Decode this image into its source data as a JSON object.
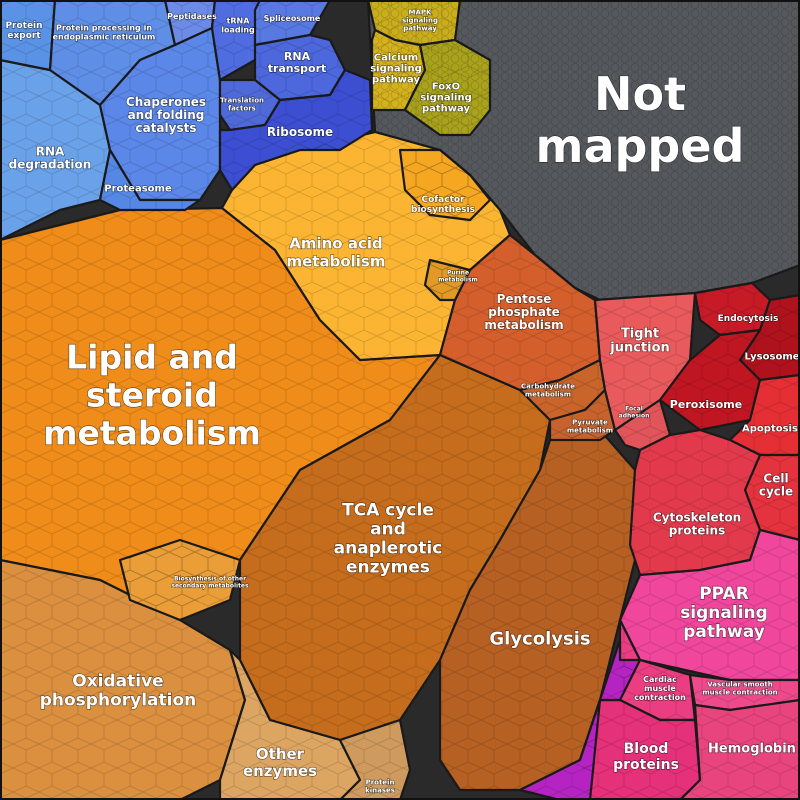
{
  "diagram": {
    "type": "voronoi-treemap",
    "cells": [
      {
        "id": "not-mapped",
        "label": [
          "Not",
          "mapped"
        ],
        "color": "#55585c"
      },
      {
        "id": "lipid-steroid",
        "label": [
          "Lipid and",
          "steroid",
          "metabolism"
        ],
        "color": "#f08c1a"
      },
      {
        "id": "amino-acid",
        "label": [
          "Amino acid",
          "metabolism"
        ],
        "color": "#fbb532"
      },
      {
        "id": "tca-cycle",
        "label": [
          "TCA cycle",
          "and",
          "anaplerotic",
          "enzymes"
        ],
        "color": "#c56d1d"
      },
      {
        "id": "glycolysis",
        "label": [
          "Glycolysis"
        ],
        "color": "#b66023"
      },
      {
        "id": "pentose-phosphate",
        "label": [
          "Pentose",
          "phosphate",
          "metabolism"
        ],
        "color": "#d45f2c"
      },
      {
        "id": "carbohydrate",
        "label": [
          "Carbohydrate",
          "metabolism"
        ],
        "color": "#c9642a"
      },
      {
        "id": "pyruvate",
        "label": [
          "Pyruvate",
          "metabolism"
        ],
        "color": "#c7622c"
      },
      {
        "id": "cofactor",
        "label": [
          "Cofactor",
          "biosynthesis"
        ],
        "color": "#f5a722"
      },
      {
        "id": "purine",
        "label": [
          "Purine",
          "metabolism"
        ],
        "color": "#e39a25"
      },
      {
        "id": "oxphos",
        "label": [
          "Oxidative",
          "phosphorylation"
        ],
        "color": "#db9040"
      },
      {
        "id": "other-enzymes",
        "label": [
          "Other",
          "enzymes"
        ],
        "color": "#dca562"
      },
      {
        "id": "protein-kinases",
        "label": [
          "Protein",
          "kinases"
        ],
        "color": "#cf9a5d"
      },
      {
        "id": "biosynthesis-secondary",
        "label": [
          "Biosynthesis of other",
          "secondary metabolites"
        ],
        "color": "#eb9e38"
      },
      {
        "id": "rna-degradation",
        "label": [
          "RNA",
          "degradation"
        ],
        "color": "#6aa2ea"
      },
      {
        "id": "protein-export",
        "label": [
          "Protein",
          "export"
        ],
        "color": "#5a93e6"
      },
      {
        "id": "protein-processing-er",
        "label": [
          "Protein processing in",
          "endoplasmic reticulum"
        ],
        "color": "#5f8ee7"
      },
      {
        "id": "peptidases",
        "label": [
          "Peptidases"
        ],
        "color": "#6b8be6"
      },
      {
        "id": "chaperones",
        "label": [
          "Chaperones",
          "and folding",
          "catalysts"
        ],
        "color": "#5a87e8"
      },
      {
        "id": "proteasome",
        "label": [
          "Proteasome"
        ],
        "color": "#5488e4"
      },
      {
        "id": "trna-loading",
        "label": [
          "tRNA",
          "loading"
        ],
        "color": "#4f6de0"
      },
      {
        "id": "spliceosome",
        "label": [
          "Spliceosome"
        ],
        "color": "#5878e2"
      },
      {
        "id": "rna-transport",
        "label": [
          "RNA",
          "transport"
        ],
        "color": "#4d67dc"
      },
      {
        "id": "translation-factors",
        "label": [
          "Translation",
          "factors"
        ],
        "color": "#4f6ad8"
      },
      {
        "id": "ribosome",
        "label": [
          "Ribosome"
        ],
        "color": "#3c4fd2"
      },
      {
        "id": "mapk",
        "label": [
          "MAPK",
          "signaling",
          "pathway"
        ],
        "color": "#c9ad1c"
      },
      {
        "id": "calcium",
        "label": [
          "Calcium",
          "signaling",
          "pathway"
        ],
        "color": "#d4b21e"
      },
      {
        "id": "foxo",
        "label": [
          "FoxO",
          "signaling",
          "pathway"
        ],
        "color": "#a9a21d"
      },
      {
        "id": "tight-junction",
        "label": [
          "Tight",
          "junction"
        ],
        "color": "#e85a5c"
      },
      {
        "id": "focal-adhesion",
        "label": [
          "Focal",
          "adhesion"
        ],
        "color": "#e0545a"
      },
      {
        "id": "endocytosis",
        "label": [
          "Endocytosis"
        ],
        "color": "#c71a27"
      },
      {
        "id": "lysosome",
        "label": [
          "Lysosome"
        ],
        "color": "#b0121d"
      },
      {
        "id": "peroxisome",
        "label": [
          "Peroxisome"
        ],
        "color": "#c01622"
      },
      {
        "id": "apoptosis",
        "label": [
          "Apoptosis"
        ],
        "color": "#e62f35"
      },
      {
        "id": "cell-cycle",
        "label": [
          "Cell",
          "cycle"
        ],
        "color": "#e4323e"
      },
      {
        "id": "cytoskeleton",
        "label": [
          "Cytoskeleton",
          "proteins"
        ],
        "color": "#e23a4c"
      },
      {
        "id": "ppar",
        "label": [
          "PPAR",
          "signaling",
          "pathway"
        ],
        "color": "#f0469c"
      },
      {
        "id": "cardiac",
        "label": [
          "Cardiac",
          "muscle",
          "contraction"
        ],
        "color": "#ea3d82"
      },
      {
        "id": "vascular",
        "label": [
          "Vascular smooth",
          "muscle contraction"
        ],
        "color": "#ee4a8b"
      },
      {
        "id": "blood-proteins",
        "label": [
          "Blood",
          "proteins"
        ],
        "color": "#e5307a"
      },
      {
        "id": "hemoglobin",
        "label": [
          "Hemoglobin"
        ],
        "color": "#e8457e"
      },
      {
        "id": "purple-edge",
        "label": [],
        "color": "#b524c2"
      }
    ]
  }
}
